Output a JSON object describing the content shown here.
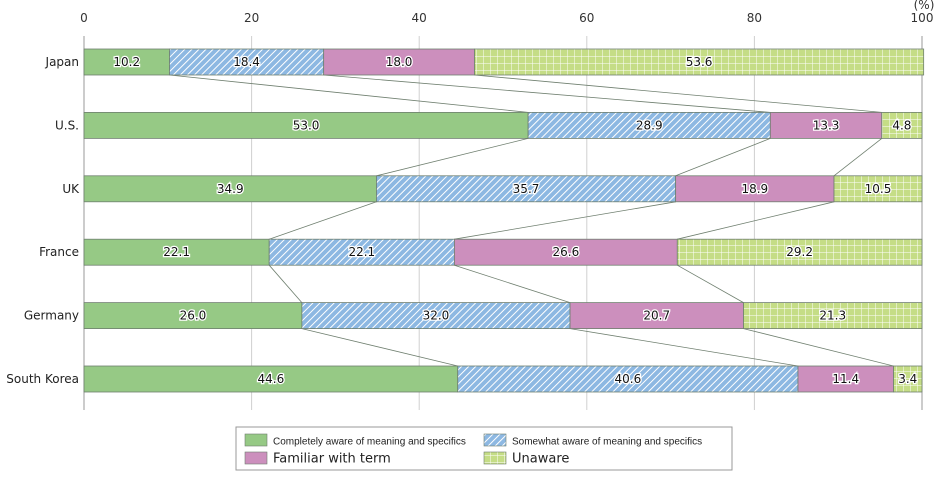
{
  "chart_data": {
    "type": "bar",
    "orientation": "horizontal-stacked-100",
    "title": "",
    "xlabel": "",
    "unit_label": "(%)",
    "xlim": [
      0,
      100
    ],
    "x_ticks": [
      "0",
      "20",
      "40",
      "60",
      "80",
      "100"
    ],
    "x_tick_values": [
      0,
      20,
      40,
      60,
      80,
      100
    ],
    "grid": true,
    "categories": [
      "Japan",
      "U.S.",
      "UK",
      "France",
      "Germany",
      "South Korea"
    ],
    "series": [
      {
        "name": "Completely aware of meaning and specifics",
        "color": "#96c985",
        "pattern": "solid",
        "values": [
          10.2,
          53.0,
          34.9,
          22.1,
          26.0,
          44.6
        ]
      },
      {
        "name": "Somewhat aware of meaning and specifics",
        "color": "#8db8e2",
        "pattern": "diagonal-hatch",
        "values": [
          18.4,
          28.9,
          35.7,
          22.1,
          32.0,
          40.6
        ]
      },
      {
        "name": "Familiar with term",
        "color": "#cc8fbd",
        "pattern": "solid",
        "values": [
          18.0,
          13.3,
          18.9,
          26.6,
          20.7,
          11.4
        ]
      },
      {
        "name": "Unaware",
        "color": "#c5dd86",
        "pattern": "grid",
        "values": [
          53.6,
          4.8,
          10.5,
          29.2,
          21.3,
          3.4
        ]
      }
    ],
    "value_labels": [
      [
        "10.2",
        "18.4",
        "18.0",
        "53.6"
      ],
      [
        "53.0",
        "28.9",
        "13.3",
        "4.8"
      ],
      [
        "34.9",
        "35.7",
        "18.9",
        "10.5"
      ],
      [
        "22.1",
        "22.1",
        "26.6",
        "29.2"
      ],
      [
        "26.0",
        "32.0",
        "20.7",
        "21.3"
      ],
      [
        "44.6",
        "40.6",
        "11.4",
        "3.4"
      ]
    ],
    "connector_lines": true,
    "legend_position": "bottom-center"
  }
}
